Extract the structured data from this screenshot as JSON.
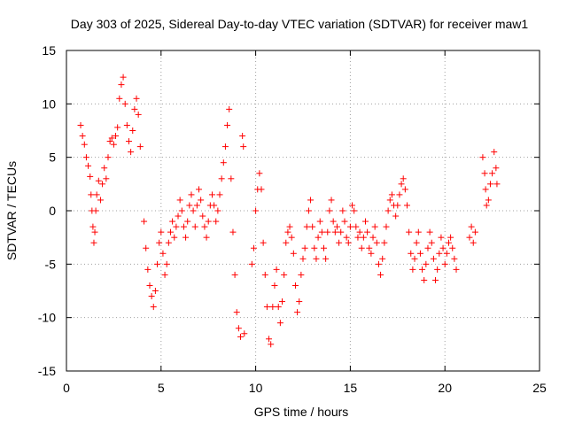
{
  "chart_data": {
    "type": "scatter",
    "title": "Day 303 of 2025, Sidereal Day-to-day VTEC variation (SDTVAR) for receiver maw1",
    "xlabel": "GPS time / hours",
    "ylabel": "SDTVAR / TECUs",
    "xlim": [
      0,
      25
    ],
    "ylim": [
      -15,
      15
    ],
    "xticks": [
      "0",
      "5",
      "10",
      "15",
      "20",
      "25"
    ],
    "yticks": [
      "15",
      "10",
      "5",
      "0",
      "-5",
      "-10",
      "-15"
    ],
    "grid": true,
    "marker": "plus",
    "color": "#ff0000",
    "series": [
      {
        "name": "maw1",
        "segments": [
          [
            0.75,
            8.0
          ],
          [
            0.85,
            7.0
          ],
          [
            0.95,
            6.2
          ],
          [
            1.05,
            5.0
          ],
          [
            1.15,
            4.2
          ],
          [
            1.25,
            3.2
          ],
          [
            1.3,
            1.5
          ],
          [
            1.35,
            0.0
          ],
          [
            1.4,
            -1.5
          ],
          [
            1.45,
            -3.0
          ],
          [
            1.5,
            -2.0
          ],
          [
            1.55,
            0.0
          ],
          [
            1.6,
            1.5
          ],
          [
            1.7,
            2.8
          ],
          [
            1.8,
            1.0
          ],
          [
            1.9,
            2.5
          ],
          [
            2.0,
            4.0
          ],
          [
            2.1,
            3.0
          ],
          [
            2.2,
            5.0
          ],
          [
            2.3,
            6.5
          ],
          [
            2.4,
            6.8
          ],
          [
            2.5,
            6.2
          ],
          [
            2.6,
            7.0
          ],
          [
            2.7,
            7.8
          ],
          [
            2.8,
            10.5
          ],
          [
            2.9,
            11.8
          ],
          [
            3.0,
            12.5
          ],
          [
            3.1,
            10.0
          ],
          [
            3.2,
            8.0
          ],
          [
            3.3,
            6.5
          ],
          [
            3.4,
            5.5
          ],
          [
            3.5,
            7.5
          ],
          [
            3.6,
            9.5
          ],
          [
            3.7,
            10.5
          ],
          [
            3.8,
            9.0
          ],
          [
            3.9,
            6.0
          ],
          [
            4.1,
            -1.0
          ],
          [
            4.2,
            -3.5
          ],
          [
            4.3,
            -5.5
          ],
          [
            4.4,
            -7.0
          ],
          [
            4.5,
            -8.0
          ],
          [
            4.6,
            -9.0
          ],
          [
            4.7,
            -7.5
          ],
          [
            4.8,
            -5.0
          ],
          [
            4.9,
            -3.0
          ],
          [
            5.0,
            -2.0
          ],
          [
            5.1,
            -4.0
          ],
          [
            5.2,
            -6.0
          ],
          [
            5.3,
            -5.0
          ],
          [
            5.4,
            -3.0
          ],
          [
            5.5,
            -2.0
          ],
          [
            5.6,
            -1.0
          ],
          [
            5.7,
            -2.5
          ],
          [
            5.8,
            -1.5
          ],
          [
            5.9,
            -0.5
          ],
          [
            6.0,
            1.0
          ],
          [
            6.1,
            0.0
          ],
          [
            6.2,
            -1.5
          ],
          [
            6.3,
            -2.5
          ],
          [
            6.4,
            -1.0
          ],
          [
            6.5,
            0.5
          ],
          [
            6.6,
            1.5
          ],
          [
            6.7,
            0.0
          ],
          [
            6.8,
            -1.5
          ],
          [
            6.9,
            0.5
          ],
          [
            7.0,
            2.0
          ],
          [
            7.1,
            1.0
          ],
          [
            7.2,
            -0.5
          ],
          [
            7.3,
            -1.5
          ],
          [
            7.4,
            -2.5
          ],
          [
            7.5,
            -1.0
          ],
          [
            7.6,
            0.5
          ],
          [
            7.7,
            1.5
          ],
          [
            7.8,
            0.5
          ],
          [
            7.9,
            -1.0
          ],
          [
            8.0,
            0.0
          ],
          [
            8.1,
            1.5
          ],
          [
            8.2,
            3.0
          ],
          [
            8.3,
            4.5
          ],
          [
            8.4,
            6.0
          ],
          [
            8.5,
            8.0
          ],
          [
            8.6,
            9.5
          ],
          [
            8.7,
            3.0
          ],
          [
            8.8,
            -2.0
          ],
          [
            8.9,
            -6.0
          ],
          [
            9.0,
            -9.5
          ],
          [
            9.1,
            -11.0
          ],
          [
            9.2,
            -11.8
          ],
          [
            9.3,
            7.0
          ],
          [
            9.35,
            6.0
          ],
          [
            9.4,
            -11.5
          ],
          [
            9.8,
            -5.0
          ],
          [
            9.9,
            -3.5
          ],
          [
            10.0,
            0.0
          ],
          [
            10.1,
            2.0
          ],
          [
            10.2,
            3.5
          ],
          [
            10.3,
            2.0
          ],
          [
            10.4,
            -3.0
          ],
          [
            10.5,
            -6.0
          ],
          [
            10.6,
            -9.0
          ],
          [
            10.7,
            -12.0
          ],
          [
            10.8,
            -12.5
          ],
          [
            10.9,
            -9.0
          ],
          [
            11.0,
            -7.0
          ],
          [
            11.1,
            -5.5
          ],
          [
            11.2,
            -9.0
          ],
          [
            11.3,
            -10.5
          ],
          [
            11.4,
            -8.5
          ],
          [
            11.5,
            -6.0
          ],
          [
            11.6,
            -3.0
          ],
          [
            11.7,
            -2.0
          ],
          [
            11.8,
            -1.5
          ],
          [
            11.9,
            -2.5
          ],
          [
            12.0,
            -4.0
          ],
          [
            12.1,
            -7.0
          ],
          [
            12.2,
            -9.5
          ],
          [
            12.3,
            -8.5
          ],
          [
            12.4,
            -6.0
          ],
          [
            12.5,
            -4.5
          ],
          [
            12.6,
            -3.5
          ],
          [
            12.7,
            -1.5
          ],
          [
            12.8,
            0.0
          ],
          [
            12.9,
            1.0
          ],
          [
            13.0,
            -1.5
          ],
          [
            13.1,
            -3.5
          ],
          [
            13.2,
            -4.5
          ],
          [
            13.3,
            -2.5
          ],
          [
            13.4,
            -1.0
          ],
          [
            13.5,
            -2.0
          ],
          [
            13.6,
            -3.5
          ],
          [
            13.7,
            -4.5
          ],
          [
            13.8,
            -2.0
          ],
          [
            13.9,
            0.0
          ],
          [
            14.0,
            1.0
          ],
          [
            14.1,
            -1.0
          ],
          [
            14.2,
            -2.0
          ],
          [
            14.3,
            -1.5
          ],
          [
            14.4,
            -3.0
          ],
          [
            14.5,
            -2.0
          ],
          [
            14.6,
            0.0
          ],
          [
            14.7,
            -1.0
          ],
          [
            14.8,
            -2.5
          ],
          [
            14.9,
            -3.0
          ],
          [
            15.0,
            -1.5
          ],
          [
            15.1,
            0.5
          ],
          [
            15.2,
            0.0
          ],
          [
            15.3,
            -1.5
          ],
          [
            15.4,
            -2.5
          ],
          [
            15.5,
            -2.0
          ],
          [
            15.6,
            -3.5
          ],
          [
            15.7,
            -2.5
          ],
          [
            15.8,
            -1.0
          ],
          [
            15.9,
            -2.0
          ],
          [
            16.0,
            -3.5
          ],
          [
            16.1,
            -4.0
          ],
          [
            16.2,
            -2.5
          ],
          [
            16.3,
            -1.5
          ],
          [
            16.4,
            -3.0
          ],
          [
            16.5,
            -5.0
          ],
          [
            16.6,
            -6.0
          ],
          [
            16.7,
            -4.5
          ],
          [
            16.8,
            -3.0
          ],
          [
            16.9,
            -1.5
          ],
          [
            17.0,
            0.0
          ],
          [
            17.1,
            1.0
          ],
          [
            17.2,
            1.5
          ],
          [
            17.3,
            0.5
          ],
          [
            17.4,
            -0.5
          ],
          [
            17.5,
            0.5
          ],
          [
            17.6,
            1.5
          ],
          [
            17.7,
            2.5
          ],
          [
            17.8,
            3.0
          ],
          [
            17.9,
            2.0
          ],
          [
            18.0,
            0.5
          ],
          [
            18.1,
            -2.0
          ],
          [
            18.2,
            -4.0
          ],
          [
            18.3,
            -5.5
          ],
          [
            18.4,
            -4.5
          ],
          [
            18.5,
            -3.0
          ],
          [
            18.6,
            -2.0
          ],
          [
            18.7,
            -4.0
          ],
          [
            18.8,
            -5.5
          ],
          [
            18.9,
            -6.5
          ],
          [
            19.0,
            -5.0
          ],
          [
            19.1,
            -3.5
          ],
          [
            19.2,
            -2.0
          ],
          [
            19.3,
            -3.0
          ],
          [
            19.4,
            -4.5
          ],
          [
            19.5,
            -6.5
          ],
          [
            19.6,
            -5.5
          ],
          [
            19.7,
            -4.0
          ],
          [
            19.8,
            -2.5
          ],
          [
            19.9,
            -3.5
          ],
          [
            20.0,
            -5.0
          ],
          [
            20.1,
            -4.0
          ],
          [
            20.2,
            -3.0
          ],
          [
            20.3,
            -2.5
          ],
          [
            20.4,
            -3.5
          ],
          [
            20.5,
            -4.5
          ],
          [
            20.6,
            -5.5
          ],
          [
            21.3,
            -2.5
          ],
          [
            21.4,
            -1.5
          ],
          [
            21.5,
            -3.0
          ],
          [
            21.6,
            -2.0
          ],
          [
            22.0,
            5.0
          ],
          [
            22.1,
            3.5
          ],
          [
            22.15,
            2.0
          ],
          [
            22.2,
            0.5
          ],
          [
            22.3,
            1.0
          ],
          [
            22.4,
            2.5
          ],
          [
            22.5,
            3.5
          ],
          [
            22.6,
            5.5
          ],
          [
            22.7,
            4.0
          ],
          [
            22.75,
            2.5
          ]
        ]
      }
    ]
  }
}
